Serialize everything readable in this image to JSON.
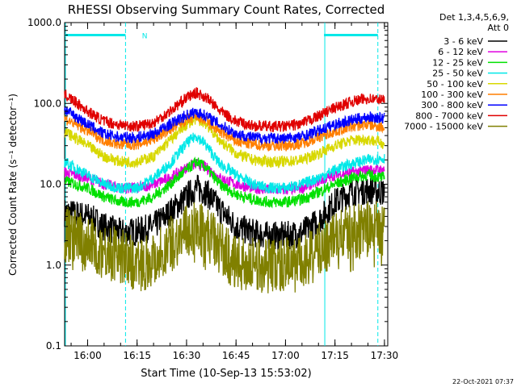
{
  "chart_data": {
    "type": "line",
    "title": "RHESSI Observing Summary Count Rates, Corrected",
    "xlabel": "Start Time (10-Sep-13 15:53:02)",
    "ylabel": "Corrected Count Rate (s⁻¹ detector⁻¹)",
    "yscale": "log",
    "ylim": [
      0.1,
      1000
    ],
    "xlim": [
      "15:53:02",
      "17:31:00"
    ],
    "x_ticks": [
      "16:00",
      "16:15",
      "16:30",
      "16:45",
      "17:00",
      "17:15",
      "17:30"
    ],
    "y_ticks": [
      "0.1",
      "1.0",
      "10.0",
      "100.0",
      "1000.0"
    ],
    "grid": false,
    "legend_position": "right",
    "legend_header": [
      "Det 1,3,4,5,6,9,",
      "Att 0"
    ],
    "annotations": {
      "night_label": "N",
      "night_intervals": [
        [
          "15:53:02",
          "16:11:30"
        ],
        [
          "17:11:40",
          "17:28:00"
        ]
      ]
    },
    "timestamp": "22-Oct-2021 07:37",
    "x": [
      "15:53",
      "16:00",
      "16:05",
      "16:10",
      "16:15",
      "16:20",
      "16:25",
      "16:30",
      "16:33",
      "16:36",
      "16:40",
      "16:45",
      "16:50",
      "16:55",
      "17:00",
      "17:05",
      "17:10",
      "17:15",
      "17:20",
      "17:25",
      "17:30"
    ],
    "series": [
      {
        "name": "3 - 6 keV",
        "color": "#000000",
        "values": [
          4.5,
          4,
          3,
          2.5,
          2.6,
          3,
          4.5,
          7,
          9,
          8,
          5,
          3,
          2.5,
          2.3,
          2.3,
          2.5,
          3.5,
          6,
          8,
          8.5,
          8
        ]
      },
      {
        "name": "6 - 12 keV",
        "color": "#e000e0",
        "values": [
          14,
          12,
          10,
          9,
          9,
          10,
          12,
          16,
          18,
          16,
          12,
          10,
          9,
          8.5,
          8.5,
          9,
          11,
          13,
          14,
          15,
          15
        ]
      },
      {
        "name": "12 - 25 keV",
        "color": "#00e000",
        "values": [
          11,
          9,
          7,
          6,
          6,
          7,
          10,
          15,
          19,
          16,
          10,
          7.5,
          6.5,
          6,
          6,
          6.5,
          8,
          10,
          12,
          13,
          12
        ]
      },
      {
        "name": "25 - 50 keV",
        "color": "#00e8e8",
        "values": [
          19,
          13,
          10,
          9,
          9,
          12,
          18,
          32,
          40,
          30,
          18,
          13,
          10,
          9,
          9,
          10,
          12,
          15,
          18,
          20,
          21
        ]
      },
      {
        "name": "50 - 100 keV",
        "color": "#d8d800",
        "values": [
          45,
          30,
          22,
          19,
          19,
          22,
          35,
          55,
          65,
          55,
          35,
          24,
          20,
          19,
          19,
          20,
          24,
          30,
          35,
          36,
          32
        ]
      },
      {
        "name": "100 - 300 keV",
        "color": "#ff7f00",
        "values": [
          65,
          46,
          35,
          31,
          31,
          36,
          48,
          62,
          68,
          60,
          45,
          34,
          31,
          30,
          30,
          32,
          38,
          45,
          52,
          55,
          50
        ]
      },
      {
        "name": "300 - 800 keV",
        "color": "#0000ff",
        "values": [
          85,
          55,
          42,
          38,
          38,
          42,
          55,
          72,
          78,
          70,
          55,
          42,
          38,
          37,
          37,
          39,
          46,
          55,
          62,
          68,
          65
        ]
      },
      {
        "name": "800 - 7000 keV",
        "color": "#e00000",
        "values": [
          130,
          80,
          60,
          54,
          52,
          58,
          80,
          118,
          135,
          118,
          82,
          60,
          53,
          52,
          52,
          56,
          70,
          88,
          105,
          115,
          110
        ]
      },
      {
        "name": "7000 - 15000 keV",
        "color": "#808000",
        "values": [
          2.5,
          1.8,
          1.5,
          1.3,
          1.0,
          1.2,
          1.8,
          2.5,
          3.0,
          2.5,
          1.7,
          1.0,
          1.0,
          1.0,
          1.0,
          1.0,
          1.5,
          2.2,
          2.6,
          2.8,
          2.8
        ]
      }
    ]
  },
  "colors": {
    "annotation": "#00e8e8",
    "axes": "#000000",
    "background": "#ffffff"
  }
}
